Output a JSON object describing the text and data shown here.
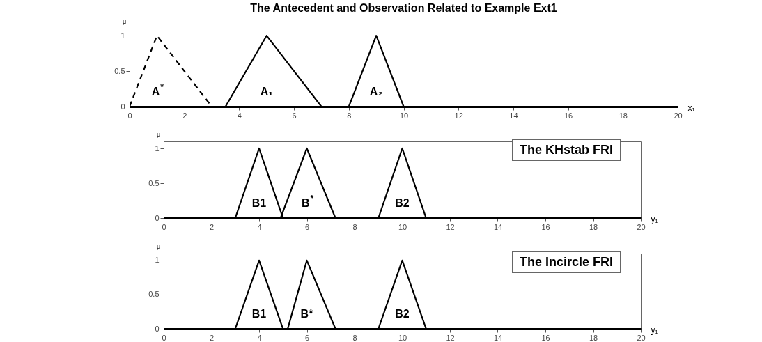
{
  "chart_data": [
    {
      "type": "line",
      "title": "The Antecedent and Observation Related to Example Ext1",
      "xlabel": "x₁",
      "ylabel": "μ",
      "xlim": [
        0,
        20
      ],
      "xticks": [
        0,
        2,
        4,
        6,
        8,
        10,
        12,
        14,
        16,
        18,
        20
      ],
      "ylim": [
        0,
        1.1
      ],
      "yticks": [
        0,
        0.5,
        1
      ],
      "series": [
        {
          "name": "A$^{*}$",
          "color": "#000000",
          "line_style": "dashed",
          "x": [
            0,
            1,
            3
          ],
          "values": [
            0,
            1,
            0
          ]
        },
        {
          "name": "A₁",
          "color": "#000000",
          "x": [
            3.5,
            5,
            7
          ],
          "values": [
            0,
            1,
            0
          ]
        },
        {
          "name": "A₂",
          "color": "#000000",
          "x": [
            8,
            9,
            10
          ],
          "values": [
            0,
            1,
            0
          ]
        }
      ]
    },
    {
      "type": "line",
      "xlabel": "y₁",
      "ylabel": "μ",
      "xlim": [
        0,
        20
      ],
      "xticks": [
        0,
        2,
        4,
        6,
        8,
        10,
        12,
        14,
        16,
        18,
        20
      ],
      "ylim": [
        0,
        1.1
      ],
      "yticks": [
        0,
        0.5,
        1
      ],
      "annotations": [
        "The KHstab FRI"
      ],
      "series": [
        {
          "name": "B1",
          "color": "#000000",
          "x": [
            3,
            4,
            5
          ],
          "values": [
            0,
            1,
            0
          ]
        },
        {
          "name": "B$^{*}$",
          "color": "#000000",
          "x": [
            4.9,
            6,
            7.2
          ],
          "values": [
            0,
            1,
            0
          ]
        },
        {
          "name": "B2",
          "color": "#000000",
          "x": [
            9,
            10,
            11
          ],
          "values": [
            0,
            1,
            0
          ]
        }
      ]
    },
    {
      "type": "line",
      "xlabel": "y₁",
      "ylabel": "μ",
      "xlim": [
        0,
        20
      ],
      "xticks": [
        0,
        2,
        4,
        6,
        8,
        10,
        12,
        14,
        16,
        18,
        20
      ],
      "ylim": [
        0,
        1.1
      ],
      "yticks": [
        0,
        0.5,
        1
      ],
      "annotations": [
        "The Incircle FRI"
      ],
      "series": [
        {
          "name": "B1",
          "color": "#000000",
          "x": [
            3,
            4,
            5
          ],
          "values": [
            0,
            1,
            0
          ]
        },
        {
          "name": "B*",
          "color": "#000000",
          "x": [
            5.2,
            6,
            7.2
          ],
          "values": [
            0,
            1,
            0
          ]
        },
        {
          "name": "B2",
          "color": "#000000",
          "x": [
            9,
            10,
            11
          ],
          "values": [
            0,
            1,
            0
          ]
        }
      ]
    }
  ]
}
